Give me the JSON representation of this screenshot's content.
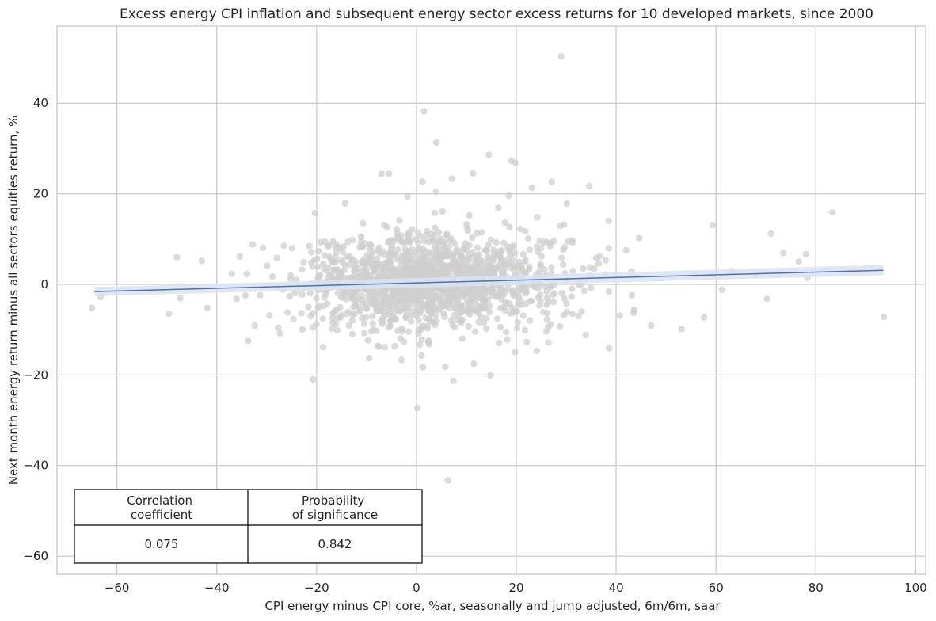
{
  "chart_data": {
    "type": "scatter",
    "title": "Excess energy CPI inflation and subsequent energy sector excess returns for 10 developed markets, since 2000",
    "xlabel": "CPI energy minus CPI core, %ar, seasonally and jump adjusted, 6m/6m, saar",
    "ylabel": "Next month energy return minus all sectors equities return, %",
    "xlim": [
      -72,
      102
    ],
    "ylim": [
      -64,
      57
    ],
    "xticks": [
      -60,
      -40,
      -20,
      0,
      20,
      40,
      60,
      80,
      100
    ],
    "yticks": [
      -60,
      -40,
      -20,
      0,
      20,
      40
    ],
    "xtick_labels": [
      "−60",
      "−40",
      "−20",
      "0",
      "20",
      "40",
      "60",
      "80",
      "100"
    ],
    "ytick_labels": [
      "−60",
      "−40",
      "−20",
      "0",
      "20",
      "40"
    ],
    "grid": true,
    "point_color": "#cfcfcf",
    "line_color": "#4c72b0",
    "band_color": "#dbe3f1",
    "regression": {
      "x": [
        -64.5,
        93.5
      ],
      "y": [
        -1.6,
        3.1
      ],
      "ci_low": [
        -2.6,
        2.0
      ],
      "ci_high": [
        -0.6,
        4.3
      ]
    },
    "points": [
      {
        "x": 29.0,
        "y": 50.3
      },
      {
        "x": 1.5,
        "y": 38.2
      },
      {
        "x": 4.0,
        "y": 31.3
      },
      {
        "x": 14.5,
        "y": 28.6
      },
      {
        "x": 19.0,
        "y": 27.3
      },
      {
        "x": 19.8,
        "y": 26.8
      },
      {
        "x": -7.0,
        "y": 24.4
      },
      {
        "x": -5.5,
        "y": 24.4
      },
      {
        "x": 11.3,
        "y": 24.5
      },
      {
        "x": 7.1,
        "y": 23.3
      },
      {
        "x": 27.1,
        "y": 22.6
      },
      {
        "x": 1.2,
        "y": 22.7
      },
      {
        "x": 34.6,
        "y": 21.7
      },
      {
        "x": 23.1,
        "y": 21.3
      },
      {
        "x": 3.9,
        "y": 20.4
      },
      {
        "x": 18.5,
        "y": 19.6
      },
      {
        "x": 30.1,
        "y": 17.8
      },
      {
        "x": -20.3,
        "y": 15.7
      },
      {
        "x": 83.3,
        "y": 15.9
      },
      {
        "x": 24.2,
        "y": 14.8
      },
      {
        "x": 38.5,
        "y": 14.0
      },
      {
        "x": 59.3,
        "y": 13.1
      },
      {
        "x": 71.0,
        "y": 11.2
      },
      {
        "x": -18.3,
        "y": 9.4
      },
      {
        "x": -32.8,
        "y": 8.8
      },
      {
        "x": 44.6,
        "y": 10.2
      },
      {
        "x": 73.5,
        "y": 6.9
      },
      {
        "x": 78.0,
        "y": 6.7
      },
      {
        "x": -48.0,
        "y": 6.0
      },
      {
        "x": -43.0,
        "y": 5.2
      },
      {
        "x": 76.6,
        "y": 5.0
      },
      {
        "x": -35.4,
        "y": 6.1
      },
      {
        "x": -29.9,
        "y": 4.1
      },
      {
        "x": 42.0,
        "y": 7.5
      },
      {
        "x": 56.0,
        "y": 2.1
      },
      {
        "x": 63.0,
        "y": 2.9
      },
      {
        "x": 68.0,
        "y": 2.2
      },
      {
        "x": 78.3,
        "y": 1.4
      },
      {
        "x": -63.3,
        "y": -2.8
      },
      {
        "x": -65.0,
        "y": -5.2
      },
      {
        "x": -49.6,
        "y": -6.5
      },
      {
        "x": -47.3,
        "y": -3.1
      },
      {
        "x": -41.9,
        "y": -5.2
      },
      {
        "x": -37.0,
        "y": 2.3
      },
      {
        "x": 53.1,
        "y": -9.9
      },
      {
        "x": 57.6,
        "y": -7.3
      },
      {
        "x": 70.2,
        "y": -3.2
      },
      {
        "x": 61.2,
        "y": -1.2
      },
      {
        "x": 93.6,
        "y": -7.2
      },
      {
        "x": 47.0,
        "y": -9.1
      },
      {
        "x": 38.6,
        "y": -14.1
      },
      {
        "x": 24.1,
        "y": -14.7
      },
      {
        "x": 14.8,
        "y": -20.1
      },
      {
        "x": 7.4,
        "y": -21.3
      },
      {
        "x": 0.2,
        "y": -27.3
      },
      {
        "x": -20.7,
        "y": -21.0
      },
      {
        "x": -18.7,
        "y": -13.9
      },
      {
        "x": -9.5,
        "y": -16.3
      },
      {
        "x": 1.3,
        "y": -18.3
      },
      {
        "x": 11.5,
        "y": -17.5
      },
      {
        "x": 6.3,
        "y": -43.3
      },
      {
        "x": -7.7,
        "y": -13.6
      },
      {
        "x": -3.0,
        "y": -16.7
      },
      {
        "x": 5.8,
        "y": -18.2
      },
      {
        "x": -27.7,
        "y": -9.6
      },
      {
        "x": -32.4,
        "y": -9.1
      },
      {
        "x": 40.7,
        "y": -6.9
      },
      {
        "x": 33.9,
        "y": -11.2
      },
      {
        "x": 26.0,
        "y": -10.4
      },
      {
        "x": -24.9,
        "y": 8.0
      },
      {
        "x": 10.6,
        "y": 15.2
      },
      {
        "x": 16.4,
        "y": 16.9
      },
      {
        "x": -14.3,
        "y": 17.9
      },
      {
        "x": -1.8,
        "y": 19.4
      },
      {
        "x": 20.8,
        "y": 12.2
      },
      {
        "x": 28.8,
        "y": 12.9
      },
      {
        "x": -10.7,
        "y": 13.5
      },
      {
        "x": 5.2,
        "y": 16.1
      },
      {
        "x": 33.4,
        "y": 3.5
      },
      {
        "x": 36.5,
        "y": 4.6
      },
      {
        "x": -25.8,
        "y": -6.2
      },
      {
        "x": -31.3,
        "y": -2.4
      },
      {
        "x": 22.7,
        "y": -8.0
      },
      {
        "x": 30.1,
        "y": -6.1
      },
      {
        "x": -12.8,
        "y": -11.0
      },
      {
        "x": 2.5,
        "y": -13.2
      },
      {
        "x": 9.2,
        "y": -12.0
      }
    ],
    "cluster": {
      "cx": 3.0,
      "cy": 0.5,
      "sx": 13.0,
      "sy": 5.0,
      "n": 1500,
      "seed": 7
    },
    "stats_table": {
      "headers": [
        "Correlation\ncoefficient",
        "Probability\nof significance"
      ],
      "values": [
        "0.075",
        "0.842"
      ]
    }
  }
}
